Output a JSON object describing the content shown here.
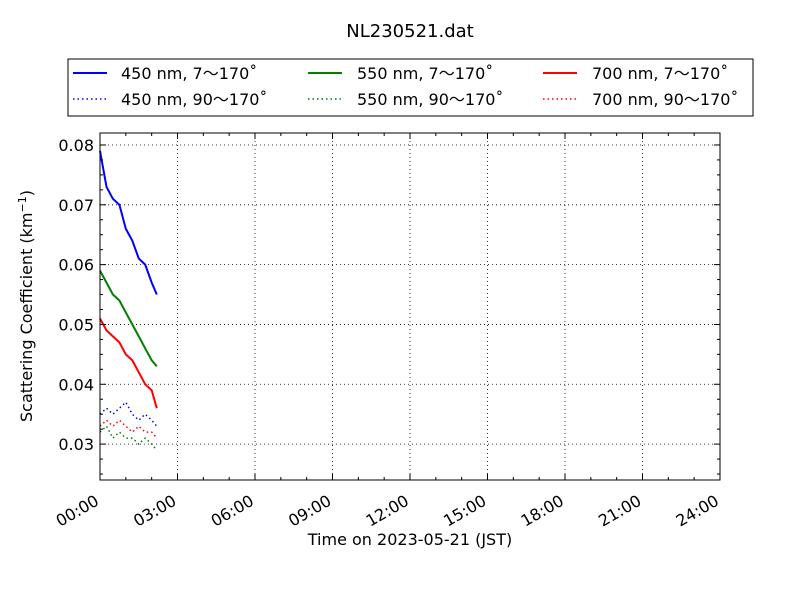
{
  "chart_data": {
    "type": "line",
    "title": "NL230521.dat",
    "xlabel": "Time on 2023-05-21 (JST)",
    "ylabel": "Scattering Coefficient (km",
    "ylabel_exponent": "−1",
    "ylabel_suffix": ")",
    "x_unit": "hours since 00:00 JST",
    "xlim": [
      0,
      24
    ],
    "ylim": [
      0.024,
      0.082
    ],
    "x_ticks": [
      0,
      3,
      6,
      9,
      12,
      15,
      18,
      21,
      24
    ],
    "x_tick_labels": [
      "00:00",
      "03:00",
      "06:00",
      "09:00",
      "12:00",
      "15:00",
      "18:00",
      "21:00",
      "24:00"
    ],
    "y_ticks": [
      0.03,
      0.04,
      0.05,
      0.06,
      0.07,
      0.08
    ],
    "y_tick_labels": [
      "0.03",
      "0.04",
      "0.05",
      "0.06",
      "0.07",
      "0.08"
    ],
    "grid": true,
    "legend_position": "top, above plot, 3 columns",
    "series": [
      {
        "name": "450 nm, 7～170˚",
        "color": "#0000ff",
        "style": "solid",
        "x": [
          0.0,
          0.25,
          0.5,
          0.75,
          1.0,
          1.25,
          1.5,
          1.75,
          2.0,
          2.2
        ],
        "y": [
          0.079,
          0.073,
          0.071,
          0.07,
          0.066,
          0.064,
          0.061,
          0.06,
          0.057,
          0.055
        ]
      },
      {
        "name": "450 nm, 90～170˚",
        "color": "#0000ff",
        "style": "dotted",
        "x": [
          0.0,
          0.25,
          0.5,
          0.75,
          1.0,
          1.25,
          1.5,
          1.75,
          2.0,
          2.2
        ],
        "y": [
          0.035,
          0.036,
          0.035,
          0.036,
          0.037,
          0.035,
          0.034,
          0.035,
          0.034,
          0.033
        ]
      },
      {
        "name": "550 nm, 7～170˚",
        "color": "#008000",
        "style": "solid",
        "x": [
          0.0,
          0.25,
          0.5,
          0.75,
          1.0,
          1.25,
          1.5,
          1.75,
          2.0,
          2.2
        ],
        "y": [
          0.059,
          0.057,
          0.055,
          0.054,
          0.052,
          0.05,
          0.048,
          0.046,
          0.044,
          0.043
        ]
      },
      {
        "name": "550 nm, 90～170˚",
        "color": "#008000",
        "style": "dotted",
        "x": [
          0.0,
          0.25,
          0.5,
          0.75,
          1.0,
          1.25,
          1.5,
          1.75,
          2.0,
          2.2
        ],
        "y": [
          0.032,
          0.033,
          0.031,
          0.032,
          0.031,
          0.031,
          0.03,
          0.031,
          0.03,
          0.029
        ]
      },
      {
        "name": "700 nm, 7～170˚",
        "color": "#ff0000",
        "style": "solid",
        "x": [
          0.0,
          0.25,
          0.5,
          0.75,
          1.0,
          1.25,
          1.5,
          1.75,
          2.0,
          2.2
        ],
        "y": [
          0.051,
          0.049,
          0.048,
          0.047,
          0.045,
          0.044,
          0.042,
          0.04,
          0.039,
          0.036
        ]
      },
      {
        "name": "700 nm, 90～170˚",
        "color": "#ff0000",
        "style": "dotted",
        "x": [
          0.0,
          0.25,
          0.5,
          0.75,
          1.0,
          1.25,
          1.5,
          1.75,
          2.0,
          2.2
        ],
        "y": [
          0.033,
          0.034,
          0.033,
          0.034,
          0.033,
          0.032,
          0.033,
          0.032,
          0.032,
          0.031
        ]
      }
    ]
  }
}
